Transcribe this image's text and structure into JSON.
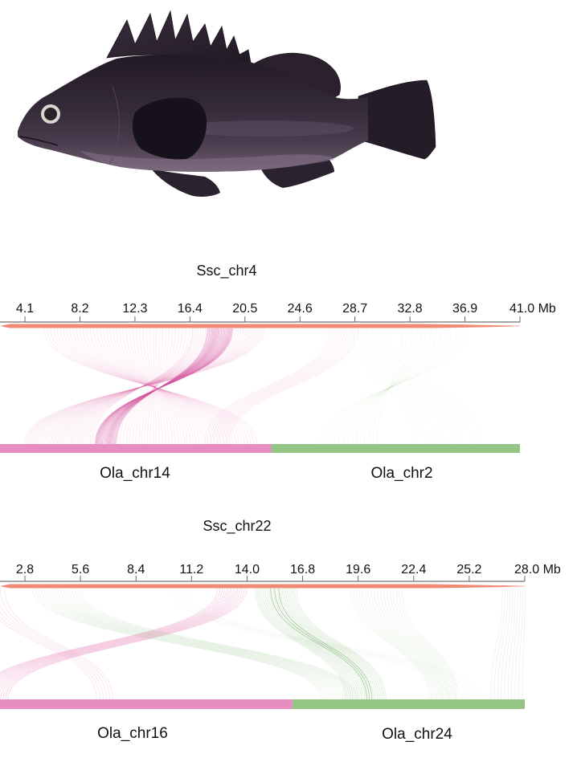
{
  "figure": {
    "illustration": "fish-photo",
    "panels": [
      {
        "title": "Ssc_chr4",
        "bottom_labels": [
          "Ola_chr14",
          "Ola_chr2"
        ]
      },
      {
        "title": "Ssc_chr22",
        "bottom_labels": [
          "Ola_chr16",
          "Ola_chr24"
        ]
      }
    ]
  },
  "chart_data": [
    {
      "type": "synteny",
      "title": "Ssc_chr4",
      "unit": "Mb",
      "axis_max": 41.0,
      "tick_values": [
        4.1,
        8.2,
        12.3,
        16.4,
        20.5,
        24.6,
        28.7,
        32.8,
        36.9,
        41.0
      ],
      "tick_labels": [
        "4.1",
        "8.2",
        "12.3",
        "16.4",
        "20.5",
        "24.6",
        "28.7",
        "32.8",
        "36.9",
        "41.0 Mb"
      ],
      "top_chromosome": {
        "label": "Ssc_chr4",
        "color": "#ef8a74"
      },
      "bottom_chromosomes": [
        {
          "label": "Ola_chr14",
          "color": "#e88dbf",
          "span": [
            0.0,
            0.548
          ]
        },
        {
          "label": "Ola_chr2",
          "color": "#94c584",
          "span": [
            0.548,
            1.0
          ]
        }
      ],
      "links": [
        {
          "target": "Ola_chr14",
          "color": "#e06aa9",
          "top_mb": [
            5.5,
            16.6
          ],
          "bottom_frac": [
            0.273,
            0.522
          ],
          "n": 46,
          "opacity": 0.14,
          "inverted": true
        },
        {
          "target": "Ola_chr14",
          "color": "#e06aa9",
          "top_mb": [
            16.6,
            22.0
          ],
          "bottom_frac": [
            0.098,
            0.222
          ],
          "n": 34,
          "opacity": 0.15,
          "inverted": true
        },
        {
          "target": "Ola_chr14",
          "color": "#d2509a",
          "top_mb": [
            17.7,
            19.6
          ],
          "bottom_frac": [
            0.227,
            0.266
          ],
          "n": 26,
          "opacity": 0.38,
          "inverted": true
        },
        {
          "target": "Ola_chr14",
          "color": "#e06aa9",
          "top_mb": [
            26.8,
            28.9
          ],
          "bottom_frac": [
            0.427,
            0.471
          ],
          "n": 12,
          "opacity": 0.12,
          "inverted": false
        },
        {
          "target": "Ola_chr14",
          "color": "#e06aa9",
          "top_mb": [
            0.5,
            2.0
          ],
          "bottom_frac": [
            0.02,
            0.05
          ],
          "n": 4,
          "opacity": 0.1,
          "inverted": false
        },
        {
          "target": "Ola_chr2",
          "color": "#7ab86a",
          "top_mb": [
            32.2,
            37.0
          ],
          "bottom_frac": [
            0.639,
            0.741
          ],
          "n": 14,
          "opacity": 0.07,
          "inverted": true
        },
        {
          "target": "Ola_chr2",
          "color": "#7ab86a",
          "top_mb": [
            28.6,
            31.0
          ],
          "bottom_frac": [
            0.81,
            0.93
          ],
          "n": 8,
          "opacity": 0.05,
          "inverted": false
        }
      ]
    },
    {
      "type": "synteny",
      "title": "Ssc_chr22",
      "unit": "Mb",
      "axis_max": 28.0,
      "tick_values": [
        2.8,
        5.6,
        8.4,
        11.2,
        14.0,
        16.8,
        19.6,
        22.4,
        25.2,
        28.0
      ],
      "tick_labels": [
        "2.8",
        "5.6",
        "8.4",
        "11.2",
        "14.0",
        "16.8",
        "19.6",
        "22.4",
        "25.2",
        "28.0 Mb"
      ],
      "top_chromosome": {
        "label": "Ssc_chr22",
        "color": "#ef8a74"
      },
      "bottom_chromosomes": [
        {
          "label": "Ola_chr16",
          "color": "#e88dbf",
          "span": [
            0.0,
            0.582
          ]
        },
        {
          "label": "Ola_chr24",
          "color": "#94c584",
          "span": [
            0.582,
            1.0
          ]
        }
      ],
      "links": [
        {
          "target": "Ola_chr16",
          "color": "#e06aa9",
          "top_mb": [
            12.5,
            14.0
          ],
          "bottom_frac": [
            0.011,
            0.069
          ],
          "n": 14,
          "opacity": 0.3,
          "inverted": false
        },
        {
          "target": "Ola_chr16",
          "color": "#e06aa9",
          "top_mb": [
            0.7,
            1.8
          ],
          "bottom_frac": [
            0.229,
            0.258
          ],
          "n": 6,
          "opacity": 0.2,
          "inverted": false
        },
        {
          "target": "Ola_chr24",
          "color": "#6aaa5a",
          "top_mb": [
            3.2,
            5.6
          ],
          "bottom_frac": [
            0.634,
            0.699
          ],
          "n": 18,
          "opacity": 0.12,
          "inverted": false
        },
        {
          "target": "Ola_chr24",
          "color": "#6aaa5a",
          "top_mb": [
            14.4,
            16.5
          ],
          "bottom_frac": [
            0.677,
            0.75
          ],
          "n": 24,
          "opacity": 0.2,
          "inverted": false
        },
        {
          "target": "Ola_chr24",
          "color": "#4f9a40",
          "top_mb": [
            15.2,
            15.6
          ],
          "bottom_frac": [
            0.715,
            0.725
          ],
          "n": 3,
          "opacity": 0.45,
          "inverted": false
        },
        {
          "target": "Ola_chr24",
          "color": "#6aaa5a",
          "top_mb": [
            19.2,
            21.8
          ],
          "bottom_frac": [
            0.829,
            0.88
          ],
          "n": 18,
          "opacity": 0.12,
          "inverted": false
        },
        {
          "target": "Ola_chr24",
          "color": "#6aaa5a",
          "top_mb": [
            26.9,
            28.0
          ],
          "bottom_frac": [
            0.938,
            0.996
          ],
          "n": 10,
          "opacity": 0.13,
          "inverted": false
        },
        {
          "target": "Ola_chr24",
          "color": "#6aaa5a",
          "top_mb": [
            10.1,
            10.9
          ],
          "bottom_frac": [
            0.865,
            0.923
          ],
          "n": 6,
          "opacity": 0.06,
          "inverted": false
        }
      ]
    }
  ]
}
